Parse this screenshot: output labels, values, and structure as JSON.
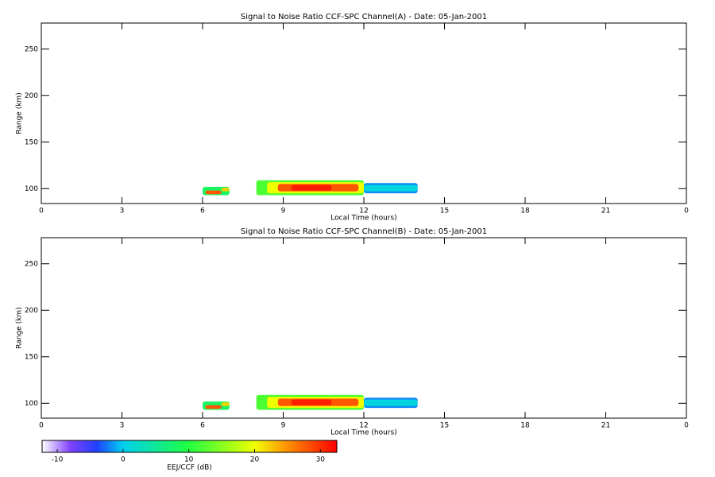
{
  "chart_data": [
    {
      "type": "heatmap",
      "title": "Signal to Noise Ratio CCF-SPC Channel(A) - Date: 05-Jan-2001",
      "x_label": "Local Time (hours)",
      "y_label": "Range (km)",
      "xlim": [
        0,
        24
      ],
      "xticks": [
        0,
        3,
        6,
        9,
        12,
        15,
        18,
        21,
        {
          "value": 24,
          "label": "0"
        }
      ],
      "ylim": [
        84,
        278
      ],
      "yticks": [
        100,
        150,
        200,
        250
      ],
      "cells": [
        {
          "x": [
            6.0,
            7.0
          ],
          "y": [
            93,
            102
          ],
          "value": 8
        },
        {
          "x": [
            6.7,
            7.0
          ],
          "y": [
            97,
            101
          ],
          "value": 22
        },
        {
          "x": [
            6.1,
            6.7
          ],
          "y": [
            94,
            98
          ],
          "value": 28
        },
        {
          "x": [
            8.0,
            12.0
          ],
          "y": [
            93,
            109
          ],
          "value": 12
        },
        {
          "x": [
            8.4,
            12.0
          ],
          "y": [
            95,
            107
          ],
          "value": 20
        },
        {
          "x": [
            8.8,
            11.8
          ],
          "y": [
            97,
            105
          ],
          "value": 28
        },
        {
          "x": [
            9.3,
            10.8
          ],
          "y": [
            98,
            104
          ],
          "value": 31
        },
        {
          "x": [
            12.0,
            14.0
          ],
          "y": [
            95,
            106
          ],
          "value": -2
        },
        {
          "x": [
            12.0,
            14.0
          ],
          "y": [
            97,
            104
          ],
          "value": 1
        }
      ]
    },
    {
      "type": "heatmap",
      "title": "Signal to Noise Ratio CCF-SPC Channel(B) - Date: 05-Jan-2001",
      "x_label": "Local Time (hours)",
      "y_label": "Range (km)",
      "xlim": [
        0,
        24
      ],
      "xticks": [
        0,
        3,
        6,
        9,
        12,
        15,
        18,
        21,
        {
          "value": 24,
          "label": "0"
        }
      ],
      "ylim": [
        84,
        278
      ],
      "yticks": [
        100,
        150,
        200,
        250
      ],
      "cells": [
        {
          "x": [
            6.0,
            7.0
          ],
          "y": [
            93,
            102
          ],
          "value": 8
        },
        {
          "x": [
            6.7,
            7.0
          ],
          "y": [
            97,
            101
          ],
          "value": 22
        },
        {
          "x": [
            6.1,
            6.7
          ],
          "y": [
            94,
            98
          ],
          "value": 28
        },
        {
          "x": [
            8.0,
            12.0
          ],
          "y": [
            93,
            109
          ],
          "value": 12
        },
        {
          "x": [
            8.4,
            12.0
          ],
          "y": [
            95,
            107
          ],
          "value": 20
        },
        {
          "x": [
            8.8,
            11.8
          ],
          "y": [
            97,
            105
          ],
          "value": 28
        },
        {
          "x": [
            9.3,
            10.8
          ],
          "y": [
            98,
            104
          ],
          "value": 31
        },
        {
          "x": [
            12.0,
            14.0
          ],
          "y": [
            95,
            106
          ],
          "value": -2
        },
        {
          "x": [
            12.0,
            14.0
          ],
          "y": [
            97,
            104
          ],
          "value": 1
        }
      ]
    }
  ],
  "colorbar": {
    "label": "EEJ/CCF (dB)",
    "clim": [
      -12.3,
      32.5
    ],
    "ticks": [
      -10,
      0,
      10,
      20,
      30
    ],
    "colorscale": [
      [
        -12.3,
        "#ffffff"
      ],
      [
        -8,
        "#8040ff"
      ],
      [
        -4,
        "#2040ff"
      ],
      [
        0,
        "#00d0f0"
      ],
      [
        10,
        "#20ff40"
      ],
      [
        20,
        "#f0ff00"
      ],
      [
        25,
        "#ff9000"
      ],
      [
        32.5,
        "#ff0000"
      ]
    ]
  }
}
